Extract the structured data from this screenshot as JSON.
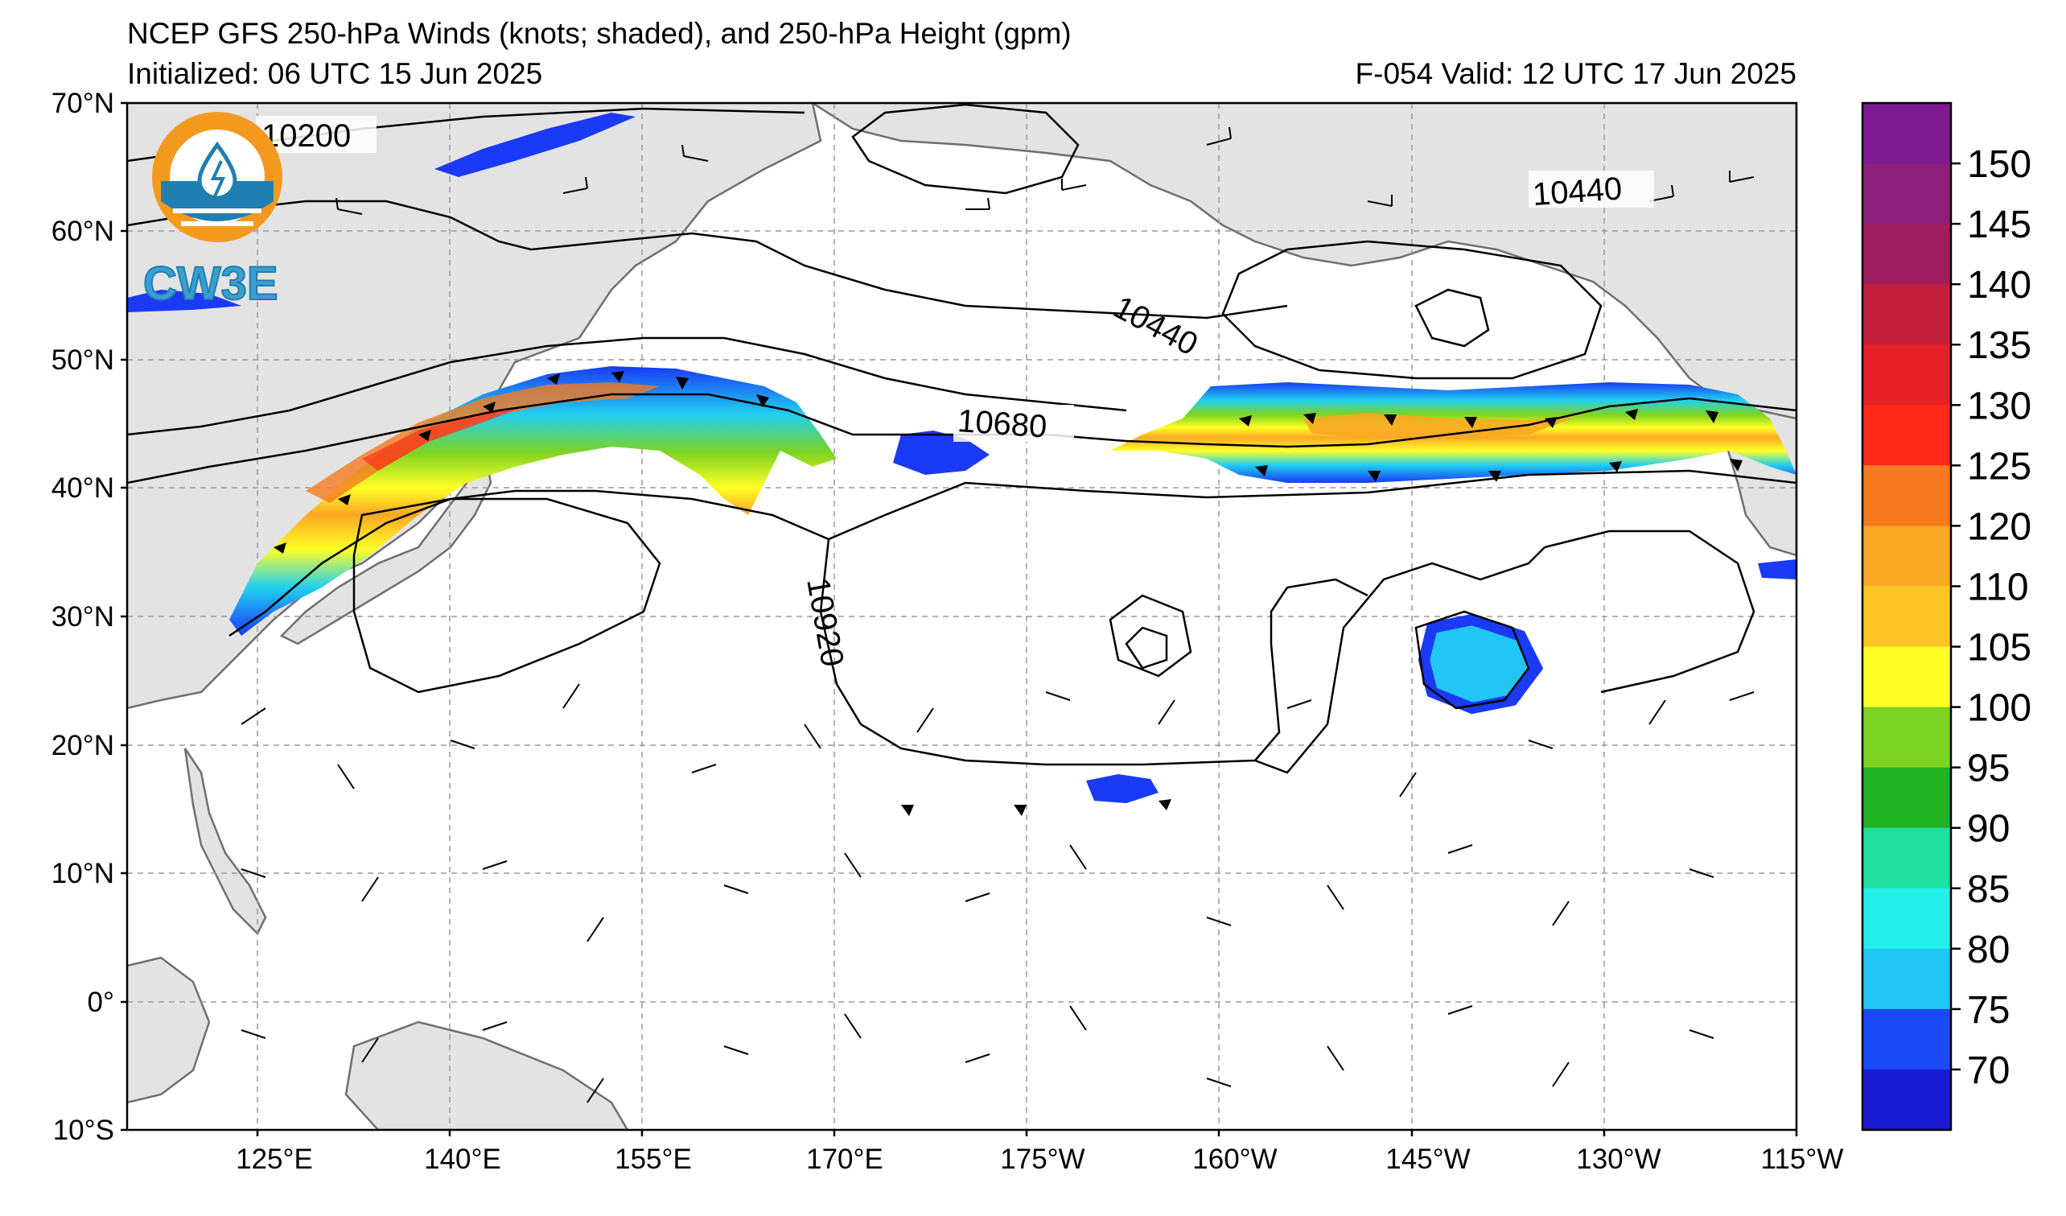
{
  "header": {
    "title": "NCEP GFS 250-hPa Winds (knots; shaded), and 250-hPa Height (gpm)",
    "initialized": "Initialized: 06 UTC 15 Jun 2025",
    "valid": "F-054  Valid: 12 UTC 17 Jun 2025"
  },
  "logo": {
    "text": "CW3E",
    "colors": {
      "ring": "#f39a1e",
      "water": "#1f7fb0",
      "text": "#3a9fd0"
    }
  },
  "map": {
    "lat_labels": [
      "70°N",
      "60°N",
      "50°N",
      "40°N",
      "30°N",
      "20°N",
      "10°N",
      "0°",
      "10°S"
    ],
    "lon_labels": [
      "125°E",
      "140°E",
      "155°E",
      "170°E",
      "175°W",
      "160°W",
      "145°W",
      "130°W",
      "115°W"
    ],
    "contour_labels": [
      {
        "text": "10200"
      },
      {
        "text": "10440"
      },
      {
        "text": "10440"
      },
      {
        "text": "10680"
      },
      {
        "text": "10920"
      }
    ],
    "land_color": "#e3e3e3"
  },
  "colorbar": {
    "labels": [
      "150",
      "145",
      "140",
      "135",
      "130",
      "125",
      "120",
      "110",
      "105",
      "100",
      "95",
      "90",
      "85",
      "80",
      "75",
      "70"
    ],
    "colors": [
      "#7d1b8f",
      "#8e1f7a",
      "#a01d5f",
      "#c21f3d",
      "#e8202a",
      "#ff2a1a",
      "#f57a22",
      "#f9a825",
      "#fcc425",
      "#ffff26",
      "#7dd321",
      "#22b323",
      "#22e0a0",
      "#22f0e8",
      "#22c6f4",
      "#1a4af5",
      "#1a1ad0"
    ]
  }
}
